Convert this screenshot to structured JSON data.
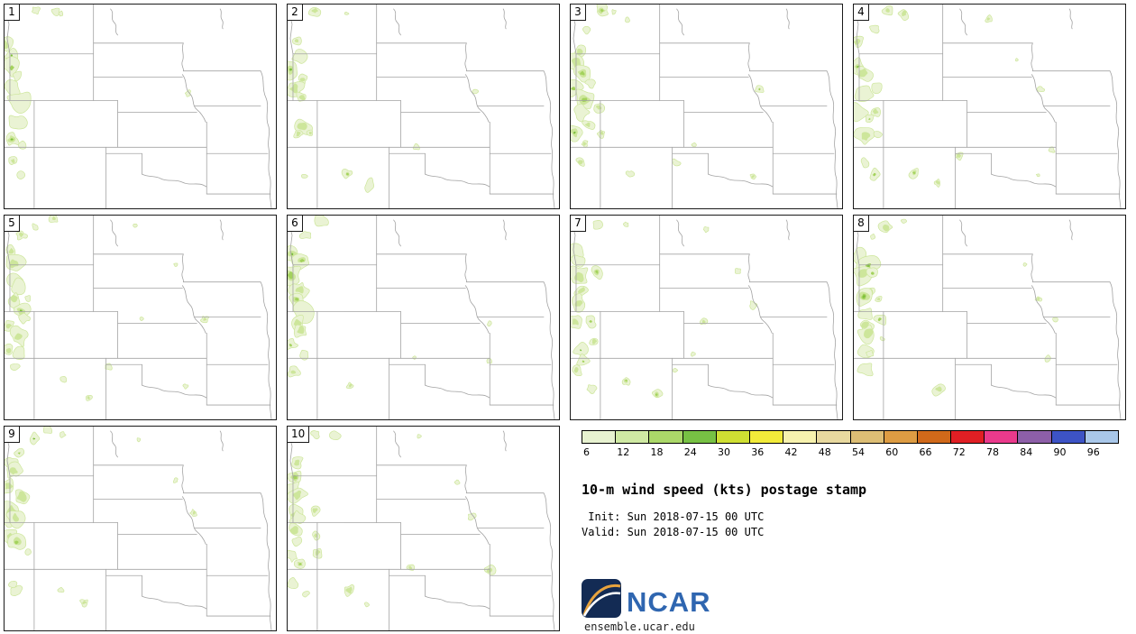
{
  "figure": {
    "title": "10-m wind speed (kts) postage stamp",
    "init_line": " Init: Sun 2018-07-15 00 UTC",
    "valid_line": "Valid: Sun 2018-07-15 00 UTC"
  },
  "panels": [
    {
      "label": "1"
    },
    {
      "label": "2"
    },
    {
      "label": "3"
    },
    {
      "label": "4"
    },
    {
      "label": "5"
    },
    {
      "label": "6"
    },
    {
      "label": "7"
    },
    {
      "label": "8"
    },
    {
      "label": "9"
    },
    {
      "label": "10"
    }
  ],
  "colorbar": {
    "ticks": [
      "6",
      "12",
      "18",
      "24",
      "30",
      "36",
      "42",
      "48",
      "54",
      "60",
      "66",
      "72",
      "78",
      "84",
      "90",
      "96"
    ],
    "colors": [
      "#e7f2d0",
      "#cfe9a3",
      "#abd869",
      "#77c144",
      "#cfdf33",
      "#f2eb3a",
      "#f7f2ae",
      "#e8d99f",
      "#ddbe75",
      "#dd9c43",
      "#d0691a",
      "#e01f24",
      "#ea3a8c",
      "#8d5fa8",
      "#3d53c5",
      "#a9c7e9"
    ]
  },
  "branding": {
    "logo_text": "NCAR",
    "url": "ensemble.ucar.edu",
    "logo_blue": "#2f66b0",
    "logo_navy": "#132b54",
    "logo_arc_orange": "#e8a33d"
  },
  "map_palette": {
    "blob_light": "#eaf3d4",
    "blob_mid": "#cde69b",
    "blob_dark": "#a3d25c",
    "blob_darkest": "#7dbf3c",
    "state_line": "#a3a3a3"
  }
}
